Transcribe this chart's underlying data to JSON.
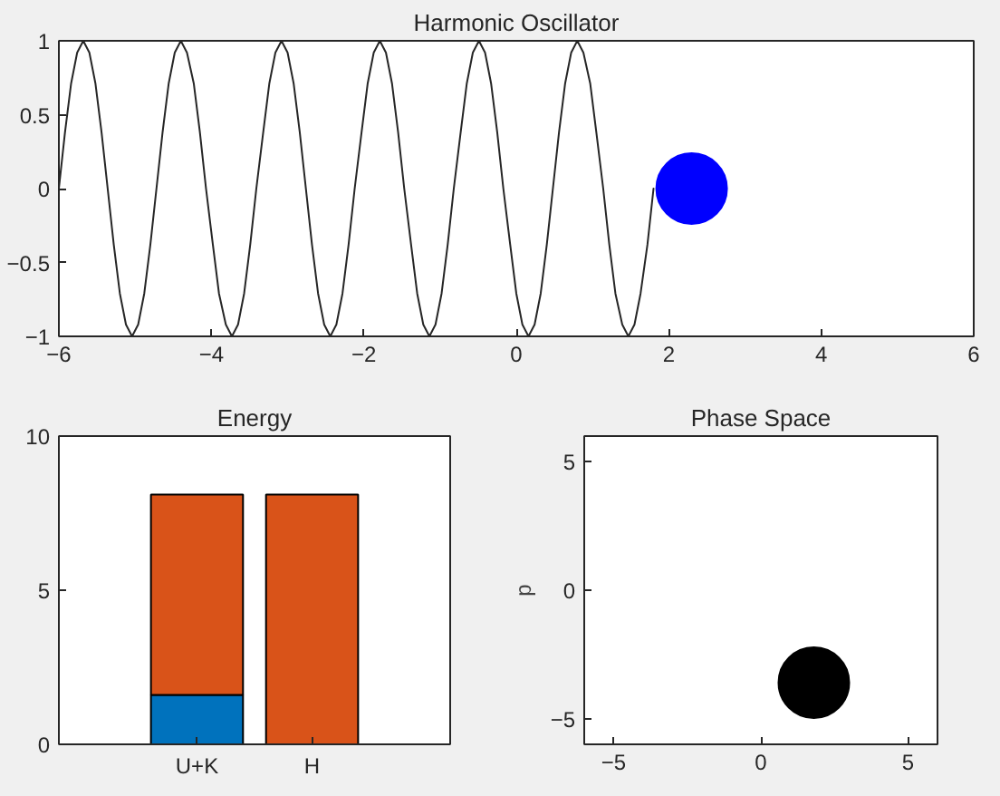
{
  "chart_data": [
    {
      "type": "line",
      "title": "Harmonic Oscillator",
      "xlim": [
        -6,
        6
      ],
      "ylim": [
        -1,
        1
      ],
      "xticks": [
        -6,
        -4,
        -2,
        0,
        2,
        4,
        6
      ],
      "yticks": [
        -1,
        -0.5,
        0,
        0.5,
        1
      ],
      "grid": false,
      "series": [
        {
          "type": "line",
          "color": "#262626",
          "line_style": "solid",
          "marker": "none",
          "x": [
            -6,
            -5.92,
            -5.84,
            -5.76,
            -5.68,
            -5.6,
            -5.52,
            -5.44,
            -5.36,
            -5.28,
            -5.2,
            -5.12,
            -5.04,
            -4.96,
            -4.88,
            -4.8,
            -4.72,
            -4.64,
            -4.56,
            -4.48,
            -4.4,
            -4.32,
            -4.23,
            -4.15,
            -4.07,
            -3.98,
            -3.9,
            -3.81,
            -3.73,
            -3.65,
            -3.57,
            -3.49,
            -3.41,
            -3.32,
            -3.24,
            -3.16,
            -3.08,
            -3.0,
            -2.92,
            -2.84,
            -2.76,
            -2.68,
            -2.6,
            -2.52,
            -2.44,
            -2.36,
            -2.28,
            -2.2,
            -2.12,
            -2.03,
            -1.95,
            -1.87,
            -1.79,
            -1.71,
            -1.63,
            -1.55,
            -1.47,
            -1.38,
            -1.3,
            -1.22,
            -1.14,
            -1.06,
            -0.98,
            -0.9,
            -0.82,
            -0.73,
            -0.65,
            -0.57,
            -0.49,
            -0.41,
            -0.33,
            -0.25,
            -0.17,
            -0.08,
            0.0,
            0.08,
            0.16,
            0.24,
            0.32,
            0.4,
            0.48,
            0.56,
            0.64,
            0.72,
            0.8,
            0.88,
            0.97,
            1.05,
            1.14,
            1.22,
            1.3,
            1.39,
            1.47,
            1.55,
            1.63,
            1.72,
            1.8
          ],
          "values": [
            0,
            0.38,
            0.71,
            0.92,
            1,
            0.92,
            0.71,
            0.38,
            0,
            -0.38,
            -0.71,
            -0.92,
            -1,
            -0.92,
            -0.71,
            -0.38,
            0,
            0.38,
            0.71,
            0.92,
            1,
            0.92,
            0.71,
            0.38,
            0,
            -0.38,
            -0.71,
            -0.92,
            -1,
            -0.92,
            -0.71,
            -0.38,
            0,
            0.38,
            0.71,
            0.92,
            1,
            0.92,
            0.71,
            0.38,
            0,
            -0.38,
            -0.71,
            -0.92,
            -1,
            -0.92,
            -0.71,
            -0.38,
            0,
            0.38,
            0.71,
            0.92,
            1,
            0.92,
            0.71,
            0.38,
            0,
            -0.38,
            -0.71,
            -0.92,
            -1,
            -0.92,
            -0.71,
            -0.38,
            0,
            0.38,
            0.71,
            0.92,
            1,
            0.92,
            0.71,
            0.38,
            0,
            -0.38,
            -0.71,
            -0.92,
            -1,
            -0.92,
            -0.71,
            -0.38,
            0,
            0.38,
            0.71,
            0.92,
            1,
            0.92,
            0.71,
            0.38,
            0,
            -0.38,
            -0.71,
            -0.92,
            -1,
            -0.92,
            -0.71,
            -0.38,
            0
          ]
        },
        {
          "type": "scatter",
          "color": "#0000ff",
          "marker": "circle",
          "x": [
            2.3
          ],
          "values": [
            0
          ]
        }
      ]
    },
    {
      "type": "bar",
      "title": "Energy",
      "stacked": true,
      "categories": [
        "U+K",
        "H"
      ],
      "ylim": [
        0,
        10
      ],
      "yticks": [
        0,
        5,
        10
      ],
      "grid": false,
      "series": [
        {
          "color": "#0072bd",
          "values": [
            1.6,
            null
          ]
        },
        {
          "color": "#d95319",
          "values": [
            6.5,
            8.1
          ]
        }
      ]
    },
    {
      "type": "scatter",
      "title": "Phase Space",
      "ylabel": "p",
      "marker": "circle",
      "xlim": [
        -6,
        6
      ],
      "ylim": [
        -6,
        6
      ],
      "xticks": [
        -5,
        0,
        5
      ],
      "yticks": [
        -5,
        0,
        5
      ],
      "grid": false,
      "series": [
        {
          "color": "#000000",
          "x": [
            1.8
          ],
          "values": [
            -3.6
          ]
        }
      ]
    }
  ]
}
